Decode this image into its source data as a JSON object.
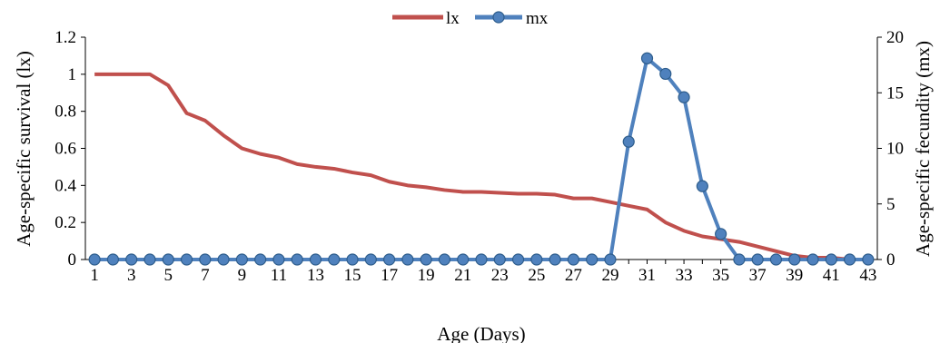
{
  "chart_data": {
    "type": "line",
    "xlabel": "Age (Days)",
    "ylabel_left": "Age-specific survival (lx)",
    "ylabel_right": "Age-specific fecundity (mx)",
    "x": [
      1,
      2,
      3,
      4,
      5,
      6,
      7,
      8,
      9,
      10,
      11,
      12,
      13,
      14,
      15,
      16,
      17,
      18,
      19,
      20,
      21,
      22,
      23,
      24,
      25,
      26,
      27,
      28,
      29,
      30,
      31,
      32,
      33,
      34,
      35,
      36,
      37,
      38,
      39,
      40,
      41,
      42,
      43
    ],
    "x_tick_labels": [
      "1",
      "3",
      "5",
      "7",
      "9",
      "11",
      "13",
      "15",
      "17",
      "19",
      "21",
      "23",
      "25",
      "27",
      "29",
      "31",
      "33",
      "35",
      "37",
      "39",
      "41",
      "43"
    ],
    "ylim_left": [
      0,
      1.2
    ],
    "yticks_left": [
      "0",
      "0.2",
      "0.4",
      "0.6",
      "0.8",
      "1",
      "1.2"
    ],
    "ylim_right": [
      0,
      20
    ],
    "yticks_right": [
      "0",
      "5",
      "10",
      "15",
      "20"
    ],
    "legend_position": "top-center",
    "grid": false,
    "series": [
      {
        "name": "lx",
        "axis": "left",
        "color": "#c0504d",
        "marker": "none",
        "values": [
          1,
          1,
          1,
          1,
          0.94,
          0.79,
          0.75,
          0.67,
          0.6,
          0.57,
          0.55,
          0.515,
          0.5,
          0.49,
          0.47,
          0.455,
          0.42,
          0.4,
          0.39,
          0.375,
          0.365,
          0.365,
          0.36,
          0.355,
          0.355,
          0.35,
          0.33,
          0.33,
          0.31,
          0.29,
          0.27,
          0.2,
          0.155,
          0.125,
          0.11,
          0.095,
          0.07,
          0.045,
          0.02,
          0.01,
          0.01,
          0,
          0
        ]
      },
      {
        "name": "mx",
        "axis": "right",
        "color": "#4f81bd",
        "marker": "circle",
        "values": [
          0,
          0,
          0,
          0,
          0,
          0,
          0,
          0,
          0,
          0,
          0,
          0,
          0,
          0,
          0,
          0,
          0,
          0,
          0,
          0,
          0,
          0,
          0,
          0,
          0,
          0,
          0,
          0,
          0,
          10.6,
          18.1,
          16.7,
          14.6,
          6.6,
          2.3,
          0,
          0,
          0,
          0,
          0,
          0,
          0,
          0
        ]
      }
    ]
  }
}
